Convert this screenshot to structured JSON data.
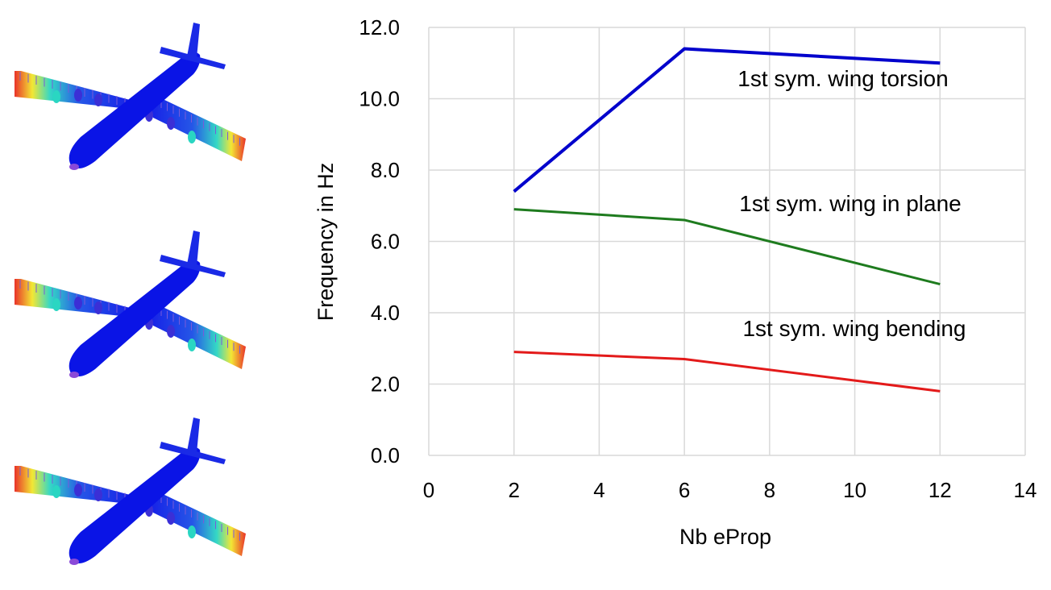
{
  "chart_data": {
    "type": "line",
    "xlabel": "Nb eProp",
    "ylabel": "Frequency in Hz",
    "xlim": [
      0,
      14
    ],
    "ylim": [
      0,
      12
    ],
    "xticks": [
      "0",
      "2",
      "4",
      "6",
      "8",
      "10",
      "12",
      "14"
    ],
    "yticks": [
      "0.0",
      "2.0",
      "4.0",
      "6.0",
      "8.0",
      "10.0",
      "12.0"
    ],
    "grid": true,
    "legend": "none",
    "series": [
      {
        "name": "1st sym. wing torsion",
        "color": "#0000cc",
        "x": [
          2,
          6,
          12
        ],
        "y": [
          7.4,
          11.4,
          11.0
        ]
      },
      {
        "name": "1st sym. wing in plane",
        "color": "#1e7b1e",
        "x": [
          2,
          6,
          12
        ],
        "y": [
          6.9,
          6.6,
          4.8
        ]
      },
      {
        "name": "1st sym. wing bending",
        "color": "#e31a1a",
        "x": [
          2,
          6,
          12
        ],
        "y": [
          2.9,
          2.7,
          1.8
        ]
      }
    ]
  },
  "images": [
    {
      "name": "airplane-mode-torsion",
      "colors": [
        "#0a14e6",
        "#2ad6c2",
        "#f2e52a",
        "#e8281e"
      ]
    },
    {
      "name": "airplane-mode-in-plane",
      "colors": [
        "#0a14e6",
        "#2ad6c2",
        "#f2e52a",
        "#e8281e"
      ]
    },
    {
      "name": "airplane-mode-bending",
      "colors": [
        "#0a14e6",
        "#2ad6c2",
        "#f2e52a",
        "#e8281e"
      ]
    }
  ]
}
